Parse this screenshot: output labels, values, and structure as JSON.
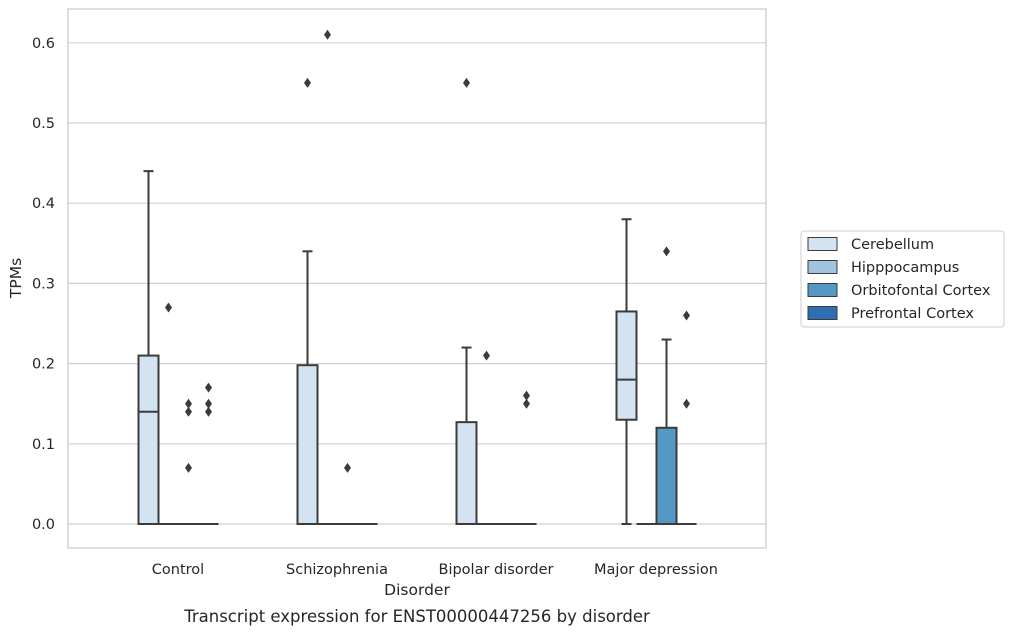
{
  "chart_data": {
    "type": "box",
    "title": "",
    "caption": "Transcript expression for ENST00000447256 by disorder",
    "xlabel": "Disorder",
    "ylabel": "TPMs",
    "ylim": [
      -0.03,
      0.64
    ],
    "yticks": [
      0.0,
      0.1,
      0.2,
      0.3,
      0.4,
      0.5,
      0.6
    ],
    "ytick_labels": [
      "0.0",
      "0.1",
      "0.2",
      "0.3",
      "0.4",
      "0.5",
      "0.6"
    ],
    "grid": true,
    "legend_position": "right, outside plot",
    "categories": [
      "Control",
      "Schizophrenia",
      "Bipolar disorder",
      "Major depression"
    ],
    "series": [
      {
        "name": "Cerebellum",
        "color": "#d4e3f2",
        "boxes": [
          {
            "min": 0.0,
            "q1": 0.0,
            "median": 0.14,
            "q3": 0.21,
            "max": 0.44,
            "outliers": []
          },
          {
            "min": 0.0,
            "q1": 0.0,
            "median": 0.0,
            "q3": 0.198,
            "max": 0.34,
            "outliers": [
              0.55
            ]
          },
          {
            "min": 0.0,
            "q1": 0.0,
            "median": 0.0,
            "q3": 0.127,
            "max": 0.22,
            "outliers": [
              0.55
            ]
          },
          {
            "min": 0.0,
            "q1": 0.13,
            "median": 0.18,
            "q3": 0.265,
            "max": 0.38,
            "outliers": []
          }
        ]
      },
      {
        "name": "Hipppocampus",
        "color": "#a0c4df",
        "boxes": [
          {
            "min": 0.0,
            "q1": 0.0,
            "median": 0.0,
            "q3": 0.0,
            "max": 0.0,
            "outliers": [
              0.27
            ]
          },
          {
            "min": 0.0,
            "q1": 0.0,
            "median": 0.0,
            "q3": 0.0,
            "max": 0.0,
            "outliers": [
              0.61
            ]
          },
          {
            "min": 0.0,
            "q1": 0.0,
            "median": 0.0,
            "q3": 0.0,
            "max": 0.0,
            "outliers": [
              0.21
            ]
          },
          {
            "min": 0.0,
            "q1": 0.0,
            "median": 0.0,
            "q3": 0.0,
            "max": 0.0,
            "outliers": []
          }
        ]
      },
      {
        "name": "Orbitofontal Cortex",
        "color": "#5698c5",
        "boxes": [
          {
            "min": 0.0,
            "q1": 0.0,
            "median": 0.0,
            "q3": 0.0,
            "max": 0.0,
            "outliers": [
              0.15,
              0.14,
              0.07
            ]
          },
          {
            "min": 0.0,
            "q1": 0.0,
            "median": 0.0,
            "q3": 0.0,
            "max": 0.0,
            "outliers": [
              0.07
            ]
          },
          {
            "min": 0.0,
            "q1": 0.0,
            "median": 0.0,
            "q3": 0.0,
            "max": 0.0,
            "outliers": []
          },
          {
            "min": 0.0,
            "q1": 0.0,
            "median": 0.0,
            "q3": 0.12,
            "max": 0.23,
            "outliers": [
              0.34
            ]
          }
        ]
      },
      {
        "name": "Prefrontal Cortex",
        "color": "#2d6fb0",
        "boxes": [
          {
            "min": 0.0,
            "q1": 0.0,
            "median": 0.0,
            "q3": 0.0,
            "max": 0.0,
            "outliers": [
              0.17,
              0.15,
              0.14
            ]
          },
          {
            "min": 0.0,
            "q1": 0.0,
            "median": 0.0,
            "q3": 0.0,
            "max": 0.0,
            "outliers": []
          },
          {
            "min": 0.0,
            "q1": 0.0,
            "median": 0.0,
            "q3": 0.0,
            "max": 0.0,
            "outliers": [
              0.16,
              0.15
            ]
          },
          {
            "min": 0.0,
            "q1": 0.0,
            "median": 0.0,
            "q3": 0.0,
            "max": 0.0,
            "outliers": [
              0.26,
              0.15
            ]
          }
        ]
      }
    ]
  }
}
